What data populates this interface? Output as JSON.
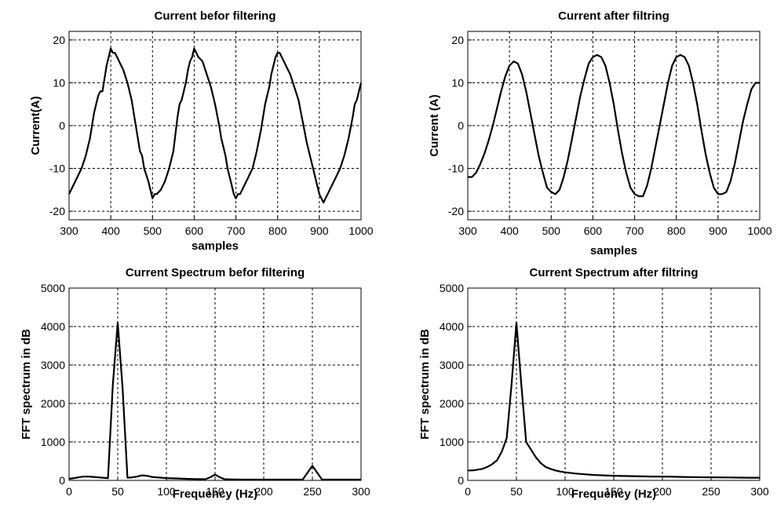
{
  "chart_data": [
    {
      "type": "line",
      "title": "Current befor filtering",
      "xlabel": "samples",
      "ylabel": "Current(A)",
      "xlim": [
        300,
        1000
      ],
      "ylim": [
        -22,
        22
      ],
      "xticks": [
        300,
        400,
        500,
        600,
        700,
        800,
        900,
        1000
      ],
      "yticks": [
        -20,
        -10,
        0,
        10,
        20
      ],
      "grid": true,
      "series": [
        {
          "x": [
            300,
            310,
            320,
            330,
            340,
            350,
            355,
            360,
            365,
            370,
            375,
            380,
            385,
            390,
            395,
            400,
            405,
            410,
            420,
            430,
            440,
            450,
            460,
            465,
            470,
            475,
            480,
            490,
            495,
            500,
            505,
            510,
            520,
            530,
            540,
            550,
            555,
            560,
            565,
            570,
            575,
            580,
            585,
            590,
            595,
            600,
            605,
            610,
            620,
            630,
            640,
            650,
            660,
            665,
            670,
            675,
            680,
            690,
            695,
            700,
            705,
            710,
            720,
            730,
            740,
            750,
            760,
            770,
            775,
            780,
            785,
            790,
            795,
            800,
            805,
            810,
            815,
            820,
            830,
            840,
            850,
            860,
            870,
            880,
            885,
            890,
            895,
            900,
            905,
            910,
            915,
            920,
            930,
            940,
            950,
            960,
            970,
            980,
            985,
            990,
            995,
            1000
          ],
          "y": [
            -16,
            -14,
            -12,
            -10,
            -7,
            -3,
            0,
            3,
            5,
            7,
            8,
            8,
            11,
            14,
            16,
            18,
            17,
            17,
            15,
            13,
            10,
            6,
            0,
            -3,
            -6,
            -7,
            -10,
            -13,
            -15,
            -17,
            -16,
            -16,
            -15,
            -13,
            -10,
            -6,
            -2,
            2,
            5,
            6,
            8,
            10,
            13,
            15,
            16,
            18,
            17,
            16,
            15,
            12,
            9,
            5,
            0,
            -3,
            -5,
            -7,
            -10,
            -14,
            -16,
            -17,
            -16,
            -16,
            -14,
            -12,
            -10,
            -6,
            -1,
            5,
            7,
            9,
            12,
            14,
            16,
            17,
            17,
            16,
            15,
            14,
            12,
            9,
            6,
            1,
            -4,
            -8,
            -10,
            -12,
            -14,
            -16,
            -17,
            -18,
            -17,
            -16,
            -14,
            -12,
            -10,
            -7,
            -3,
            2,
            5,
            6,
            8,
            10
          ]
        }
      ]
    },
    {
      "type": "line",
      "title": "Current after filtring",
      "xlabel": "samples",
      "ylabel": "Current (A)",
      "xlim": [
        300,
        1000
      ],
      "ylim": [
        -22,
        22
      ],
      "xticks": [
        300,
        400,
        500,
        600,
        700,
        800,
        900,
        1000
      ],
      "yticks": [
        -20,
        -10,
        0,
        10,
        20
      ],
      "grid": true,
      "series": [
        {
          "x": [
            300,
            310,
            320,
            330,
            340,
            350,
            360,
            370,
            380,
            390,
            400,
            410,
            420,
            430,
            440,
            450,
            460,
            470,
            480,
            490,
            500,
            510,
            520,
            530,
            540,
            550,
            560,
            570,
            580,
            590,
            600,
            610,
            620,
            630,
            640,
            650,
            660,
            670,
            680,
            690,
            700,
            710,
            720,
            730,
            740,
            750,
            760,
            770,
            780,
            790,
            800,
            810,
            820,
            830,
            840,
            850,
            860,
            870,
            880,
            890,
            900,
            910,
            920,
            930,
            940,
            950,
            960,
            970,
            980,
            990,
            1000
          ],
          "y": [
            -12,
            -12,
            -11,
            -9,
            -6.5,
            -3.5,
            0,
            4,
            8,
            11.5,
            14,
            15,
            14.5,
            12,
            8,
            3,
            -2,
            -7,
            -11,
            -14.5,
            -15.5,
            -16,
            -15,
            -12,
            -8,
            -3,
            2,
            7,
            11,
            14.5,
            16,
            16.5,
            16,
            14,
            10,
            5,
            -1,
            -6.5,
            -11,
            -14.5,
            -16,
            -16.5,
            -16.5,
            -14,
            -10,
            -5,
            0,
            5,
            10,
            14,
            16,
            16.5,
            16,
            14,
            10,
            5,
            -1,
            -6.5,
            -11,
            -14.5,
            -16,
            -16,
            -15.5,
            -13,
            -9,
            -4,
            1,
            5,
            8.5,
            10,
            10
          ]
        }
      ]
    },
    {
      "type": "line",
      "title": "Current Spectrum befor filtering",
      "xlabel": "Frequency (Hz)",
      "ylabel": "FFT spectrum in dB",
      "xlim": [
        0,
        300
      ],
      "ylim": [
        0,
        5000
      ],
      "xticks": [
        0,
        50,
        100,
        150,
        200,
        250,
        300
      ],
      "yticks": [
        0,
        1000,
        2000,
        3000,
        4000,
        5000
      ],
      "grid": true,
      "series": [
        {
          "x": [
            0,
            5,
            10,
            15,
            20,
            25,
            30,
            35,
            40,
            45,
            50,
            55,
            60,
            65,
            70,
            75,
            80,
            85,
            90,
            95,
            100,
            110,
            120,
            130,
            140,
            145,
            150,
            155,
            160,
            170,
            180,
            190,
            200,
            210,
            220,
            230,
            240,
            245,
            250,
            255,
            260,
            270,
            280,
            290,
            300
          ],
          "y": [
            40,
            60,
            80,
            100,
            100,
            90,
            80,
            70,
            60,
            2500,
            4100,
            2400,
            70,
            80,
            100,
            130,
            120,
            90,
            80,
            70,
            60,
            50,
            40,
            35,
            30,
            80,
            150,
            80,
            30,
            25,
            20,
            20,
            20,
            20,
            20,
            20,
            20,
            200,
            380,
            200,
            20,
            20,
            20,
            20,
            20
          ]
        }
      ]
    },
    {
      "type": "line",
      "title": "Current Spectrum after filtring",
      "xlabel": "Frequency (Hz)",
      "ylabel": "FFT spectrum in dB",
      "xlim": [
        0,
        300
      ],
      "ylim": [
        0,
        5000
      ],
      "xticks": [
        0,
        50,
        100,
        150,
        200,
        250,
        300
      ],
      "yticks": [
        0,
        1000,
        2000,
        3000,
        4000,
        5000
      ],
      "grid": true,
      "series": [
        {
          "x": [
            0,
            5,
            10,
            15,
            20,
            25,
            30,
            35,
            40,
            45,
            50,
            55,
            60,
            65,
            70,
            75,
            80,
            85,
            90,
            95,
            100,
            110,
            120,
            130,
            140,
            150,
            160,
            170,
            180,
            190,
            200,
            210,
            220,
            230,
            240,
            250,
            260,
            270,
            280,
            290,
            300
          ],
          "y": [
            260,
            260,
            280,
            300,
            350,
            420,
            520,
            750,
            1100,
            2500,
            4100,
            2500,
            1000,
            800,
            600,
            450,
            350,
            300,
            260,
            230,
            210,
            180,
            160,
            140,
            130,
            120,
            115,
            110,
            105,
            100,
            100,
            95,
            90,
            85,
            82,
            80,
            78,
            75,
            72,
            70,
            70
          ]
        }
      ]
    }
  ]
}
